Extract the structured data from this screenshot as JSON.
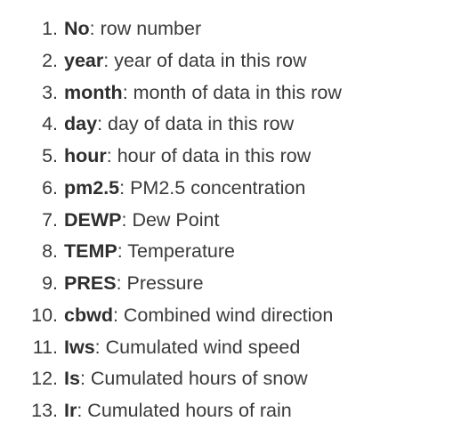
{
  "items": [
    {
      "num": "1.",
      "term": "No",
      "desc": ": row number"
    },
    {
      "num": "2.",
      "term": "year",
      "desc": ": year of data in this row"
    },
    {
      "num": "3.",
      "term": "month",
      "desc": ": month of data in this row"
    },
    {
      "num": "4.",
      "term": "day",
      "desc": ": day of data in this row"
    },
    {
      "num": "5.",
      "term": "hour",
      "desc": ": hour of data in this row"
    },
    {
      "num": "6.",
      "term": "pm2.5",
      "desc": ": PM2.5 concentration"
    },
    {
      "num": "7.",
      "term": "DEWP",
      "desc": ": Dew Point"
    },
    {
      "num": "8.",
      "term": "TEMP",
      "desc": ": Temperature"
    },
    {
      "num": "9.",
      "term": "PRES",
      "desc": ": Pressure"
    },
    {
      "num": "10.",
      "term": "cbwd",
      "desc": ": Combined wind direction"
    },
    {
      "num": "11.",
      "term": "Iws",
      "desc": ": Cumulated wind speed"
    },
    {
      "num": "12.",
      "term": "Is",
      "desc": ": Cumulated hours of snow"
    },
    {
      "num": "13.",
      "term": "Ir",
      "desc": ": Cumulated hours of rain"
    }
  ]
}
